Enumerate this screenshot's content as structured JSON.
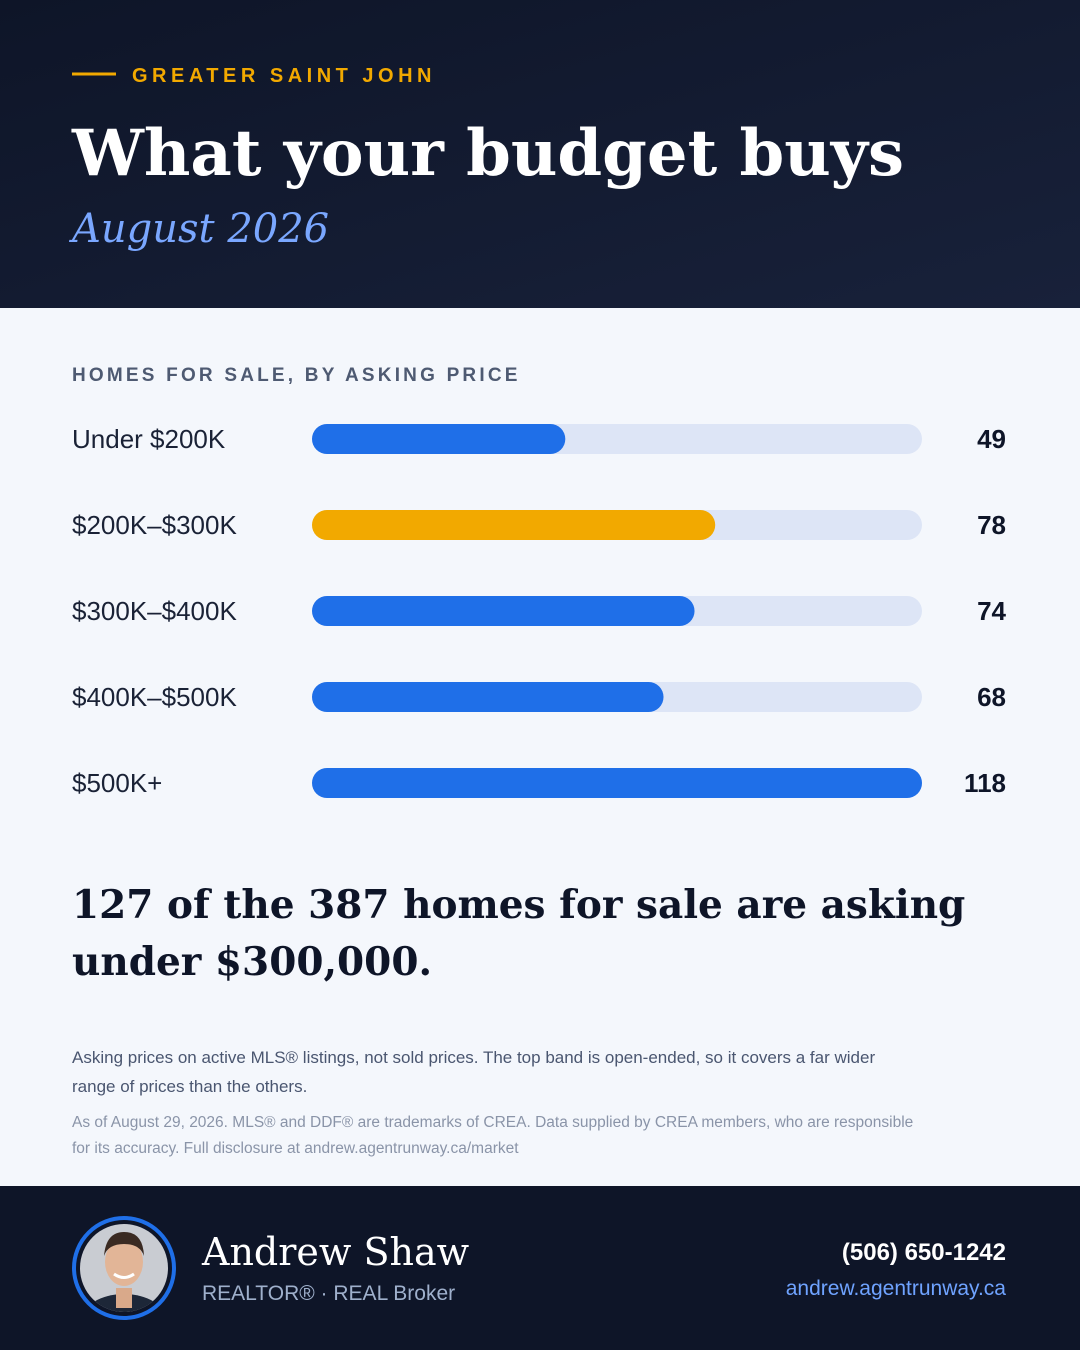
{
  "header": {
    "eyebrow": "GREATER SAINT JOHN",
    "title": "What your budget buys",
    "subtitle": "August 2026"
  },
  "chart_data": {
    "type": "bar",
    "orientation": "horizontal",
    "title": "HOMES FOR SALE, BY ASKING PRICE",
    "categories": [
      "Under $200K",
      "$200K–$300K",
      "$300K–$400K",
      "$400K–$500K",
      "$500K+"
    ],
    "values": [
      49,
      78,
      74,
      68,
      118
    ],
    "colors": [
      "#1f6fe8",
      "#f2a900",
      "#1f6fe8",
      "#1f6fe8",
      "#1f6fe8"
    ],
    "xlim": [
      0,
      118
    ]
  },
  "summary": [
    "127 of the 387 homes for sale are asking",
    "under $300,000."
  ],
  "notes": [
    "Asking prices on active MLS® listings, not sold prices. The top band is open-ended, so it covers a far wider",
    "range of prices than the others."
  ],
  "disclosure": [
    "As of August 29, 2026. MLS® and DDF® are trademarks of CREA. Data supplied by CREA members, who are responsible",
    "for its accuracy. Full disclosure at andrew.agentrunway.ca/market"
  ],
  "footer": {
    "name": "Andrew Shaw",
    "role": "REALTOR®  · REAL Broker",
    "phone": "(506) 650-1242",
    "website": "andrew.agentrunway.ca"
  }
}
